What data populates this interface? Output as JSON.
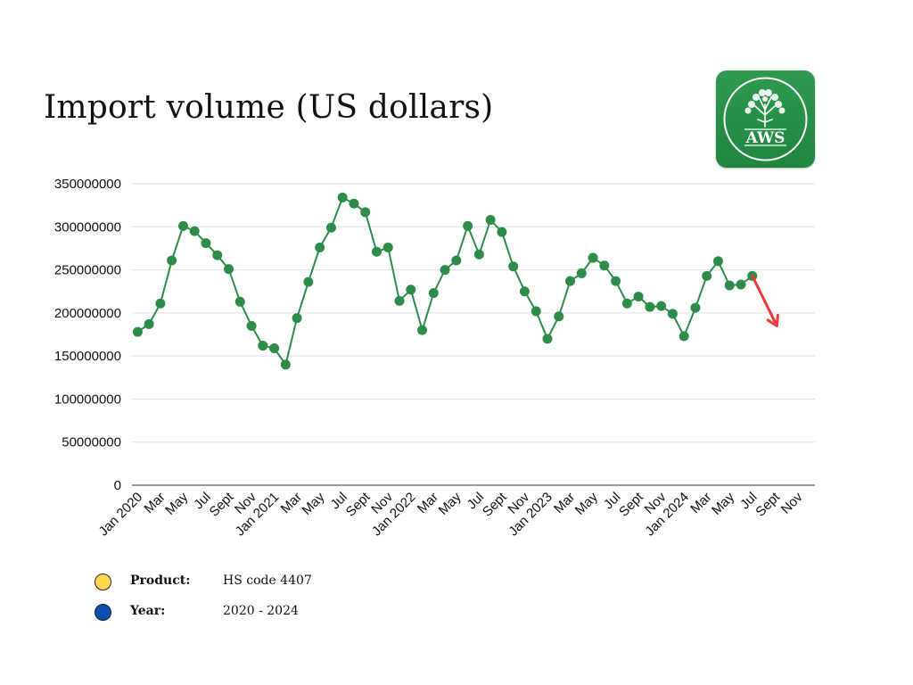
{
  "title": "Import volume (US dollars)",
  "logo": {
    "text": "AWS",
    "icon": "tree-icon",
    "colors": {
      "background": "#1f8540",
      "foreground": "#ffffff"
    }
  },
  "chart_data": {
    "type": "line",
    "title": "Import volume (US dollars)",
    "xlabel": "",
    "ylabel": "",
    "ylim": [
      0,
      350000000
    ],
    "yticks": [
      "0",
      "50000000",
      "100000000",
      "150000000",
      "200000000",
      "250000000",
      "300000000",
      "350000000"
    ],
    "grid": true,
    "legend": "none",
    "x_tick_labels": [
      "Jan 2020",
      "Mar",
      "May",
      "Jul",
      "Sept",
      "Nov",
      "Jan 2021",
      "Mar",
      "May",
      "Jul",
      "Sept",
      "Nov",
      "Jan 2022",
      "Mar",
      "May",
      "Jul",
      "Sept",
      "Nov",
      "Jan 2023",
      "Mar",
      "May",
      "Jul",
      "Sept",
      "Nov",
      "Jan 2024",
      "Mar",
      "May",
      "Jul",
      "Sept",
      "Nov"
    ],
    "x": [
      "2020-01",
      "2020-02",
      "2020-03",
      "2020-04",
      "2020-05",
      "2020-06",
      "2020-07",
      "2020-08",
      "2020-09",
      "2020-10",
      "2020-11",
      "2020-12",
      "2021-01",
      "2021-02",
      "2021-03",
      "2021-04",
      "2021-05",
      "2021-06",
      "2021-07",
      "2021-08",
      "2021-09",
      "2021-10",
      "2021-11",
      "2021-12",
      "2022-01",
      "2022-02",
      "2022-03",
      "2022-04",
      "2022-05",
      "2022-06",
      "2022-07",
      "2022-08",
      "2022-09",
      "2022-10",
      "2022-11",
      "2022-12",
      "2023-01",
      "2023-02",
      "2023-03",
      "2023-04",
      "2023-05",
      "2023-06",
      "2023-07",
      "2023-08",
      "2023-09",
      "2023-10",
      "2023-11",
      "2023-12",
      "2024-01",
      "2024-02",
      "2024-03",
      "2024-04",
      "2024-05",
      "2024-06",
      "2024-07"
    ],
    "series": [
      {
        "values": [
          178000000,
          187000000,
          211000000,
          261000000,
          301000000,
          295000000,
          281000000,
          267000000,
          251000000,
          213000000,
          185000000,
          162000000,
          159000000,
          140000000,
          194000000,
          236000000,
          276000000,
          299000000,
          334000000,
          327000000,
          317000000,
          271000000,
          276000000,
          214000000,
          227000000,
          180000000,
          223000000,
          250000000,
          261000000,
          301000000,
          268000000,
          308000000,
          294000000,
          254000000,
          225000000,
          202000000,
          170000000,
          196000000,
          237000000,
          246000000,
          264000000,
          255000000,
          237000000,
          211000000,
          219000000,
          207000000,
          208000000,
          199000000,
          173000000,
          206000000,
          243000000,
          260000000,
          232000000,
          233000000,
          243000000
        ]
      }
    ],
    "annotations": [
      {
        "type": "arrow",
        "from": "2024-07",
        "to_value": 185000000,
        "color": "#f03a3a"
      }
    ],
    "colors": {
      "line": "#2d8c4a",
      "grid": "#e0e0e0",
      "axis": "#333333"
    }
  },
  "legend": [
    {
      "label": "Product:",
      "value": "HS code 4407",
      "color": "#ffd84d"
    },
    {
      "label": "Year:",
      "value": "2020 - 2024",
      "color": "#0b4fb0"
    }
  ]
}
